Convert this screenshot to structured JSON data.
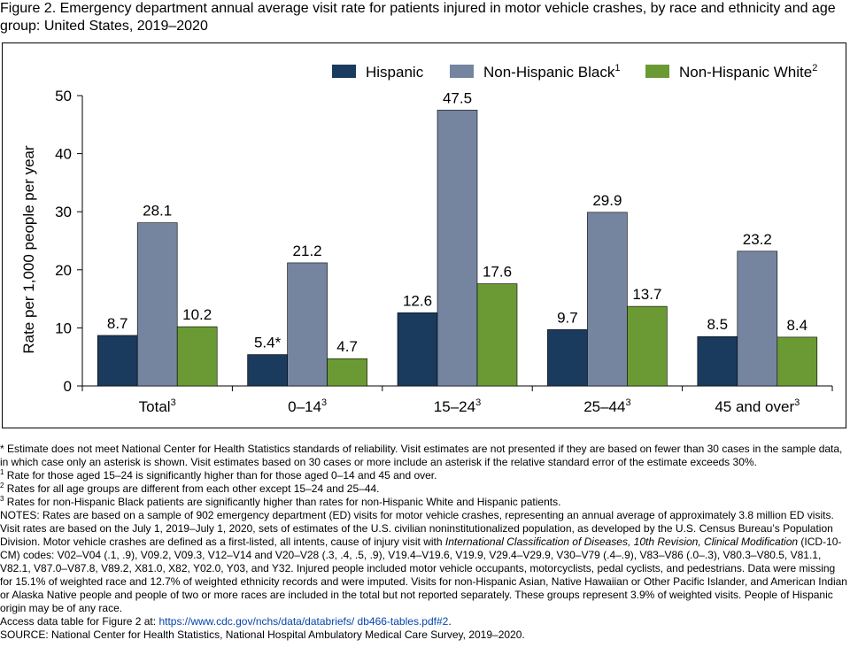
{
  "title": "Figure 2. Emergency department annual average visit rate for patients injured in motor vehicle crashes, by race and ethnicity and age group: United States, 2019–2020",
  "chart_data": {
    "type": "bar",
    "title": "Figure 2. Emergency department annual average visit rate for patients injured in motor vehicle crashes, by race and ethnicity and age group: United States, 2019–2020",
    "ylabel": "Rate per 1,000 people per year",
    "xlabel": "",
    "ylim": [
      0,
      50
    ],
    "yticks": [
      0,
      10,
      20,
      30,
      40,
      50
    ],
    "grid": false,
    "legend_position": "top-right",
    "categories": [
      {
        "label": "Total",
        "sup": "3"
      },
      {
        "label": "0–14",
        "sup": "3"
      },
      {
        "label": "15–24",
        "sup": "3"
      },
      {
        "label": "25–44",
        "sup": "3"
      },
      {
        "label": "45 and over",
        "sup": "3"
      }
    ],
    "series": [
      {
        "name": "Hispanic",
        "sup": "",
        "color": "#1a3a5e",
        "values": [
          8.7,
          5.4,
          12.6,
          9.7,
          8.5
        ],
        "labels": [
          "8.7",
          "5.4*",
          "12.6",
          "9.7",
          "8.5"
        ]
      },
      {
        "name": "Non-Hispanic Black",
        "sup": "1",
        "color": "#7585a0",
        "values": [
          28.1,
          21.2,
          47.5,
          29.9,
          23.2
        ],
        "labels": [
          "28.1",
          "21.2",
          "47.5",
          "29.9",
          "23.2"
        ]
      },
      {
        "name": "Non-Hispanic White",
        "sup": "2",
        "color": "#6b9a34",
        "values": [
          10.2,
          4.7,
          17.6,
          13.7,
          8.4
        ],
        "labels": [
          "10.2",
          "4.7",
          "17.6",
          "13.7",
          "8.4"
        ]
      }
    ]
  },
  "notes": {
    "asterisk": "* Estimate does not meet National Center for Health Statistics standards of reliability. Visit estimates are not presented if they are based on fewer than 30 cases in the sample data, in which case only an asterisk is shown. Visit estimates based on 30 cases or more include an asterisk if the relative standard error of the estimate exceeds 30%.",
    "fn1_mark": "1",
    "fn1": " Rate for those aged 15–24 is significantly higher than for those aged 0–14 and 45 and over.",
    "fn2_mark": "2",
    "fn2": " Rates for all age groups are different from each other except 15–24 and 25–44.",
    "fn3_mark": "3",
    "fn3": " Rates for non-Hispanic Black patients are significantly higher than rates for non-Hispanic White and Hispanic patients.",
    "notes_a": "NOTES: Rates are based on a sample of 902 emergency department (ED) visits for motor vehicle crashes, representing an annual average of approximately 3.8 million ED visits. Visit rates are based on the July 1, 2019–July 1, 2020, sets of estimates of the U.S. civilian noninstitutionalized population, as developed by the U.S. Census Bureau’s Population Division. Motor vehicle crashes are defined as a first-listed, all intents, cause of injury visit with ",
    "notes_italic": "International Classification of Diseases, 10th Revision, Clinical Modification",
    "notes_b": " (ICD-10-CM) codes: V02–V04 (.1, .9), V09.2, V09.3, V12–V14 and V20–V28 (.3, .4, .5, .9), V19.4–V19.6, V19.9, V29.4–V29.9, V30–V79 (.4–.9), V83–V86 (.0–.3), V80.3–V80.5, V81.1, V82.1, V87.0–V87.8, V89.2, X81.0, X82, Y02.0, Y03, and Y32. Injured people included motor vehicle occupants, motorcyclists, pedal cyclists, and pedestrians. Data were missing for 15.1% of weighted race and 12.7% of weighted ethnicity records and were imputed. Visits for non-Hispanic Asian, Native Hawaiian or Other Pacific Islander, and American Indian or Alaska Native people and people of two or more races are included in the total but not reported separately. These groups represent 3.9% of weighted visits. People of Hispanic origin may be of any race.",
    "access_prefix": "Access data table for Figure 2 at: ",
    "access_link": "https://www.cdc.gov/nchs/data/databriefs/ db466-tables.pdf#2",
    "access_suffix": ".",
    "source": "SOURCE: National Center for Health Statistics, National Hospital Ambulatory Medical Care Survey, 2019–2020."
  }
}
